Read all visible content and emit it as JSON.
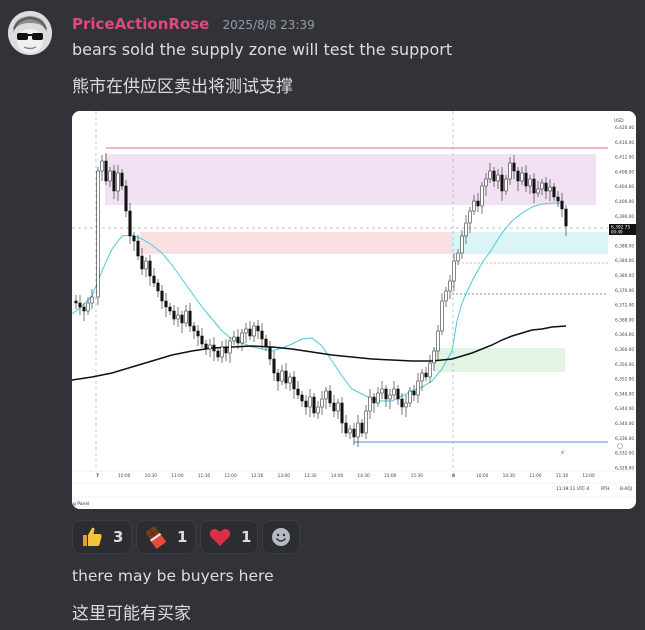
{
  "message": {
    "author": "PriceActionRose",
    "timestamp": "2025/8/8 23:39",
    "line1": "bears sold the supply zone will test the support",
    "line2": "熊市在供应区卖出将测试支撑",
    "line3": "there may be buyers here",
    "line4": "这里可能有买家"
  },
  "colors": {
    "username": "#e0497a",
    "background": "#313338"
  },
  "reactions": [
    {
      "icon": "thumbs-up-icon",
      "count": "3"
    },
    {
      "icon": "chocolate-bar-icon",
      "count": "1"
    },
    {
      "icon": "red-heart-icon",
      "count": "1"
    }
  ],
  "chart": {
    "currency": "USD",
    "last_price": "6,392.75",
    "countdown": "00:49",
    "bottom_time": "11:39:11 UTC-4",
    "rth_label": "RTH",
    "adj_label": "B-ADJ",
    "panel_label": "g Panel",
    "day_labels": [
      "7",
      "8"
    ],
    "time_labels_day1": [
      "10:00",
      "10:30",
      "11:00",
      "11:30",
      "12:00",
      "12:30",
      "13:00",
      "13:30",
      "14:00",
      "14:30",
      "15:00",
      "15:30"
    ],
    "time_labels_day2": [
      "10:00",
      "10:30",
      "11:00",
      "11:30",
      "12:00"
    ],
    "price_ticks": [
      "6,420.00",
      "6,416.00",
      "6,412.00",
      "6,408.00",
      "6,404.00",
      "6,400.00",
      "6,396.00",
      "6,392.00",
      "6,388.00",
      "6,384.00",
      "6,380.00",
      "6,376.00",
      "6,372.00",
      "6,368.00",
      "6,364.00",
      "6,360.00",
      "6,356.00",
      "6,352.00",
      "6,348.00",
      "6,344.00",
      "6,340.00",
      "6,336.00",
      "6,332.00",
      "6,328.00"
    ],
    "zones": [
      {
        "name": "supply-zone",
        "color": "#f1e1f2",
        "top": 6412.5,
        "bottom": 6398.5
      },
      {
        "name": "resistance-zone",
        "color": "#fbe0e3",
        "top": 6391,
        "bottom": 6385
      },
      {
        "name": "support-zone",
        "color": "#dbf4f6",
        "top": 6391,
        "bottom": 6385
      },
      {
        "name": "demand-zone",
        "color": "#e2f4e3",
        "top": 6358,
        "bottom": 6352
      }
    ]
  }
}
